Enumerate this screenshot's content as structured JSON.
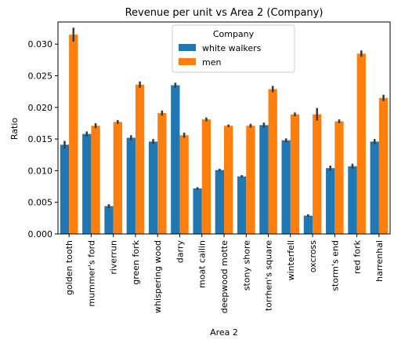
{
  "chart_data": {
    "type": "bar",
    "title": "Revenue per unit vs Area 2 (Company)",
    "xlabel": "Area 2",
    "ylabel": "Ratio",
    "ylim": [
      0,
      0.0335
    ],
    "yticks": [
      "0.000",
      "0.005",
      "0.010",
      "0.015",
      "0.020",
      "0.025",
      "0.030"
    ],
    "legend": {
      "title": "Company",
      "placement": "top-center"
    },
    "categories": [
      "golden tooth",
      "mummer's ford",
      "riverrun",
      "green fork",
      "whispering wood",
      "darry",
      "moat cailin",
      "deepwood motte",
      "stony shore",
      "torrhen's square",
      "winterfell",
      "oxcross",
      "storm's end",
      "red fork",
      "harrenhal"
    ],
    "series": [
      {
        "name": "white walkers",
        "color": "#1f77b4",
        "values": [
          0.0141,
          0.0158,
          0.0044,
          0.0152,
          0.0146,
          0.0235,
          0.0072,
          0.0101,
          0.0091,
          0.0172,
          0.0148,
          0.0029,
          0.0104,
          0.0107,
          0.0146
        ],
        "err": [
          0.0006,
          0.0004,
          0.0003,
          0.0004,
          0.0004,
          0.0004,
          0.0002,
          0.0002,
          0.0002,
          0.0004,
          0.0003,
          0.0002,
          0.0004,
          0.0004,
          0.0004
        ]
      },
      {
        "name": "men",
        "color": "#ff7f0e",
        "values": [
          0.0315,
          0.0171,
          0.0177,
          0.0236,
          0.0191,
          0.0156,
          0.0181,
          0.0171,
          0.0171,
          0.0229,
          0.0189,
          0.0189,
          0.0178,
          0.0285,
          0.0215
        ],
        "err": [
          0.0011,
          0.0004,
          0.0003,
          0.0005,
          0.0004,
          0.0004,
          0.0003,
          0.0002,
          0.0003,
          0.0005,
          0.0003,
          0.001,
          0.0003,
          0.0005,
          0.0005
        ]
      }
    ]
  }
}
